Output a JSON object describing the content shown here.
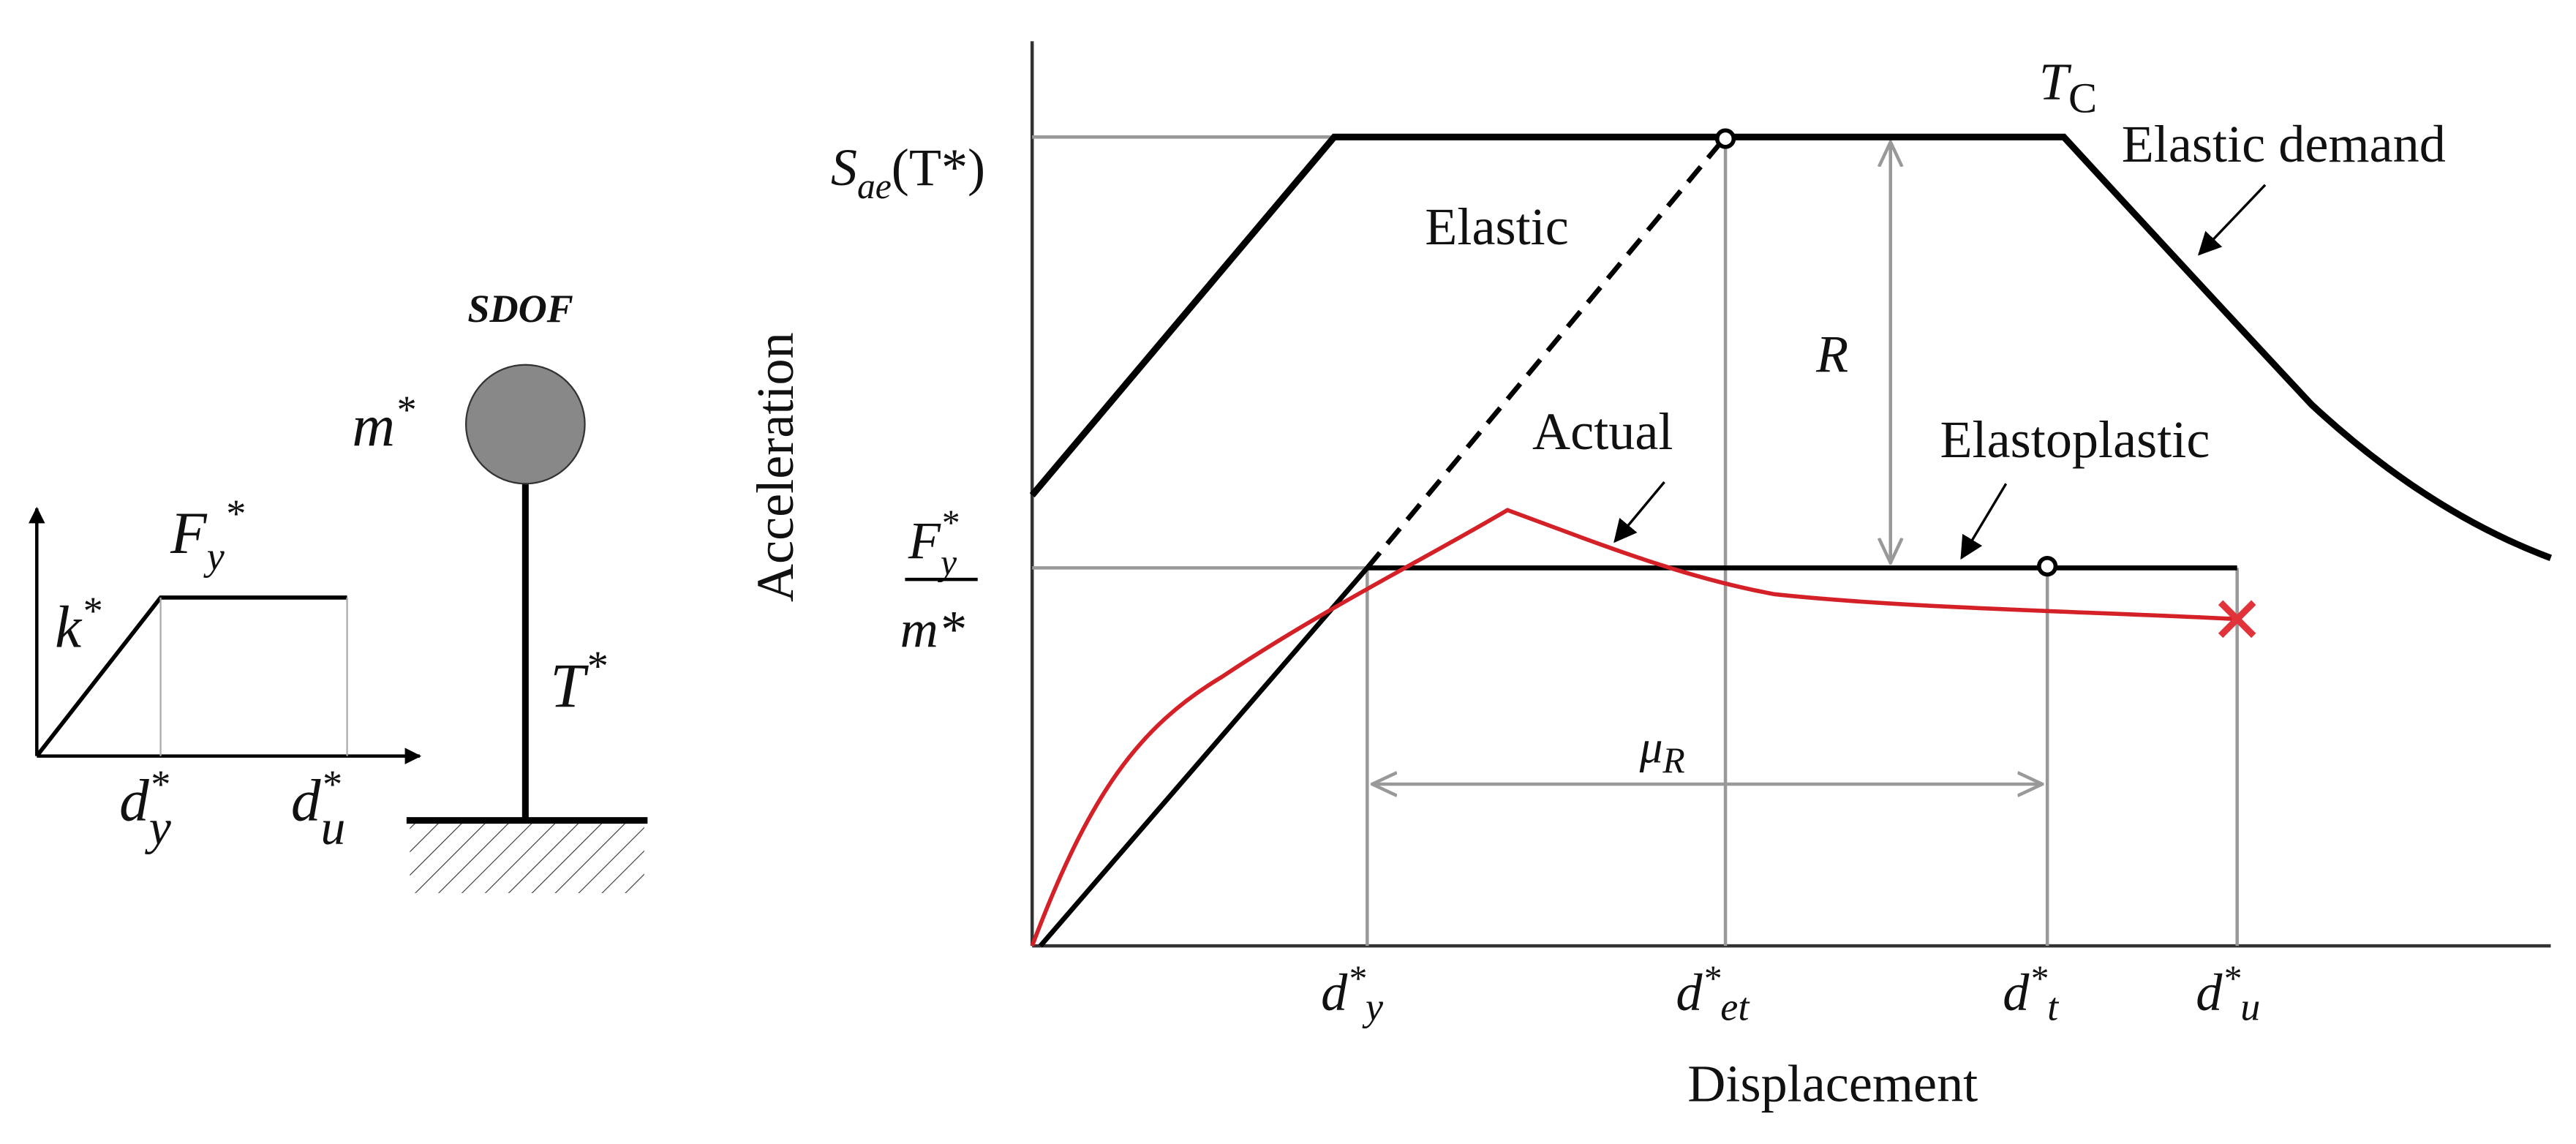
{
  "sdof": {
    "title": "SDOF",
    "mass": {
      "base": "m",
      "sup": "*"
    },
    "period": {
      "base": "T",
      "sup": "*"
    },
    "stiffness": {
      "base": "k",
      "sup": "*"
    },
    "yield_force": {
      "base": "F",
      "sub": "y",
      "sup": "*"
    },
    "yield_disp": {
      "base": "d",
      "sup": "*",
      "sub": "y"
    },
    "ultimate_disp": {
      "base": "d",
      "sup": "*",
      "sub": "u"
    }
  },
  "main": {
    "y_axis_label": "Acceleration",
    "x_axis_label": "Displacement",
    "spectral_accel": {
      "base": "S",
      "sub": "ae",
      "rest": "(T*)"
    },
    "corner_period": {
      "base": "T",
      "sub": "C"
    },
    "yield_accel": {
      "num_base": "F",
      "num_sub": "y",
      "num_sup": "*",
      "den": "m*"
    },
    "labels": {
      "elastic_demand": "Elastic demand",
      "elastic": "Elastic",
      "reduction": "R",
      "actual": "Actual",
      "elastoplastic": "Elastoplastic",
      "ductility": {
        "base": "μ",
        "sub": "R"
      }
    },
    "x_labels": [
      {
        "base": "d",
        "sup": "*",
        "sub": "y"
      },
      {
        "base": "d",
        "sup": "*",
        "sub": "et"
      },
      {
        "base": "d",
        "sup": "*",
        "sub": "t"
      },
      {
        "base": "d",
        "sup": "*",
        "sub": "u"
      }
    ]
  }
}
